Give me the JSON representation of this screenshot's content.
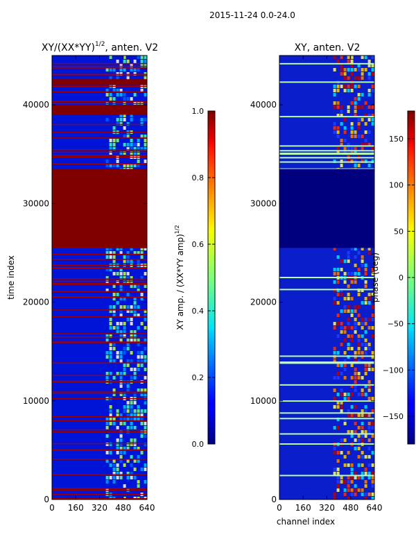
{
  "page_title": "2015-11-24 0.0-24.0",
  "chart_data": [
    {
      "type": "heatmap",
      "title": "XY/(XX*YY)^{1/2}, anten. V2",
      "title_main": "XY/(XX*YY)",
      "title_exp": "1/2",
      "title_tail": ", anten. V2",
      "xlabel": "",
      "ylabel": "time index",
      "xlim": [
        0,
        640
      ],
      "ylim": [
        0,
        45000
      ],
      "xticks": [
        0,
        160,
        320,
        480,
        640
      ],
      "yticks": [
        0,
        10000,
        20000,
        30000,
        40000
      ],
      "colorbar": {
        "label_main": "XY amp. / (XX*YY amp)",
        "label_exp": "1/2",
        "range": [
          0.0,
          1.0
        ],
        "ticks": [
          "0.0",
          "0.2",
          "0.4",
          "0.6",
          "0.8",
          "1.0"
        ]
      },
      "regions": [
        {
          "y_from": 25500,
          "y_to": 33500,
          "x_from": 0,
          "x_to": 640,
          "value": 1.0,
          "note": "saturated block"
        },
        {
          "y_from": 39000,
          "y_to": 40000,
          "x_from": 0,
          "x_to": 640,
          "value": 1.0
        },
        {
          "y_from": 42000,
          "y_to": 42600,
          "x_from": 0,
          "x_to": 640,
          "value": 1.0
        }
      ],
      "bright_band": {
        "x_from": 400,
        "x_to": 640
      }
    },
    {
      "type": "heatmap",
      "title": "XY, anten. V2",
      "xlabel": "channel index",
      "ylabel": "",
      "xlim": [
        0,
        640
      ],
      "ylim": [
        0,
        45000
      ],
      "xticks": [
        0,
        160,
        320,
        480,
        640
      ],
      "yticks": [
        0,
        10000,
        20000,
        30000,
        40000
      ],
      "colorbar": {
        "label": "phase (deg)",
        "range": [
          -180,
          180
        ],
        "ticks": [
          "150",
          "100",
          "50",
          "0",
          "−50",
          "−100",
          "−150"
        ]
      },
      "regions": [
        {
          "y_from": 25500,
          "y_to": 33500,
          "x_from": 0,
          "x_to": 640,
          "value": -180,
          "note": "constant phase block"
        }
      ],
      "bright_band": {
        "x_from": 400,
        "x_to": 640
      }
    }
  ],
  "colors": {
    "dark_blue": "#00007f",
    "blue": "#0010e0",
    "dark_red": "#800000",
    "line_cyan": "#9fffaf"
  }
}
